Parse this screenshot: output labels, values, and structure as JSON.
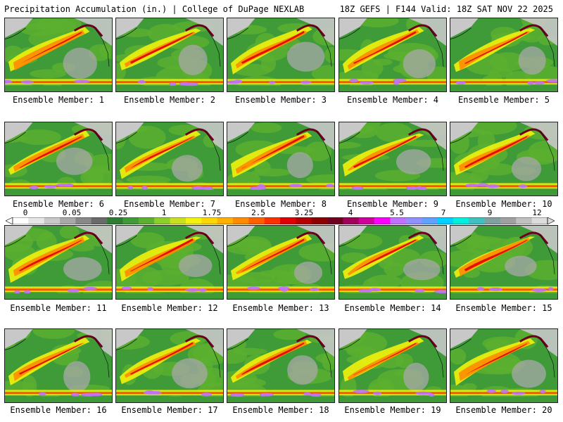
{
  "header": {
    "title_left": "Precipitation Accumulation (in.) | College of DuPage NEXLAB",
    "title_right": "18Z GEFS | F144 Valid: 18Z SAT NOV 22 2025"
  },
  "panels": [
    {
      "label": "Ensemble Member: 1"
    },
    {
      "label": "Ensemble Member: 2"
    },
    {
      "label": "Ensemble Member: 3"
    },
    {
      "label": "Ensemble Member: 4"
    },
    {
      "label": "Ensemble Member: 5"
    },
    {
      "label": "Ensemble Member: 6"
    },
    {
      "label": "Ensemble Member: 7"
    },
    {
      "label": "Ensemble Member: 8"
    },
    {
      "label": "Ensemble Member: 9"
    },
    {
      "label": "Ensemble Member: 10"
    },
    {
      "label": "Ensemble Member: 11"
    },
    {
      "label": "Ensemble Member: 12"
    },
    {
      "label": "Ensemble Member: 13"
    },
    {
      "label": "Ensemble Member: 14"
    },
    {
      "label": "Ensemble Member: 15"
    },
    {
      "label": "Ensemble Member: 16"
    },
    {
      "label": "Ensemble Member: 17"
    },
    {
      "label": "Ensemble Member: 18"
    },
    {
      "label": "Ensemble Member: 19"
    },
    {
      "label": "Ensemble Member: 20"
    }
  ],
  "colorbar": {
    "tick_labels": [
      "0",
      "0.05",
      "0.25",
      "1",
      "1.75",
      "2.5",
      "3.25",
      "4",
      "5.5",
      "7",
      "9",
      "12"
    ],
    "colors": [
      "#ffffff",
      "#e6e6e6",
      "#c8c8c8",
      "#a8a8a8",
      "#888888",
      "#6a6a6a",
      "#2e7d32",
      "#3f9a38",
      "#5cb030",
      "#8ccf2a",
      "#c8e020",
      "#f2f20c",
      "#ffd700",
      "#ffb000",
      "#ff8c00",
      "#ff6000",
      "#ff3000",
      "#e00000",
      "#b40000",
      "#8b0000",
      "#700020",
      "#a0005a",
      "#d0009a",
      "#ff00ff",
      "#c070ff",
      "#9090ff",
      "#60a0ff",
      "#00d0ff",
      "#00f0e0",
      "#40c0c0",
      "#80a0a0",
      "#a0a0a0",
      "#c0c0c0",
      "#dcdcdc"
    ]
  }
}
